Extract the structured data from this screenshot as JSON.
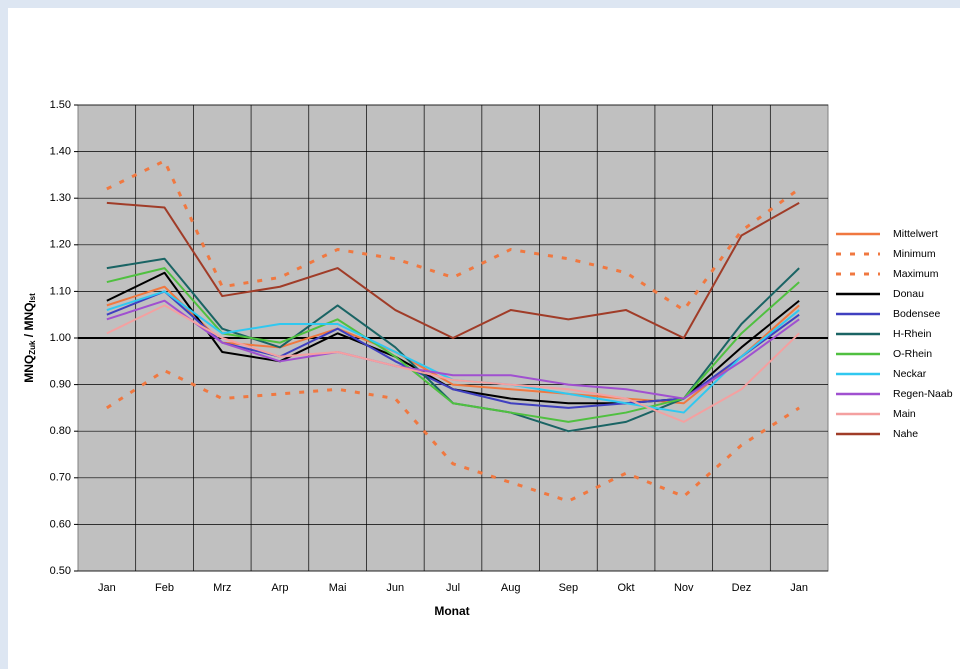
{
  "chart_data": {
    "type": "line",
    "xlabel": "Monat",
    "ylabel_parts": [
      "MNQ",
      "Zuk",
      " / MNQ",
      "Ist"
    ],
    "categories": [
      "Jan",
      "Feb",
      "Mrz",
      "Arp",
      "Mai",
      "Jun",
      "Jul",
      "Aug",
      "Sep",
      "Okt",
      "Nov",
      "Dez",
      "Jan"
    ],
    "ylim": [
      0.5,
      1.5
    ],
    "yticks": [
      {
        "value": 0.5,
        "label": "0.50"
      },
      {
        "value": 0.6,
        "label": "0.60"
      },
      {
        "value": 0.7,
        "label": "0.70"
      },
      {
        "value": 0.8,
        "label": "0.80"
      },
      {
        "value": 0.9,
        "label": "0.90"
      },
      {
        "value": 1.0,
        "label": "1.00"
      },
      {
        "value": 1.1,
        "label": "1.10"
      },
      {
        "value": 1.2,
        "label": "1.20"
      },
      {
        "value": 1.3,
        "label": "1.30"
      },
      {
        "value": 1.4,
        "label": "1.40"
      },
      {
        "value": 1.5,
        "label": "1.50"
      }
    ],
    "grid": true,
    "reference_line": 1.0,
    "legend": "right",
    "series": [
      {
        "name": "Mittelwert",
        "color": "#f07840",
        "values": [
          1.07,
          1.11,
          0.99,
          0.98,
          1.02,
          0.97,
          0.9,
          0.89,
          0.88,
          0.87,
          0.86,
          0.96,
          1.07
        ]
      },
      {
        "name": "Minimum",
        "color": "#f07840",
        "dash": true,
        "values": [
          0.85,
          0.93,
          0.87,
          0.88,
          0.89,
          0.87,
          0.73,
          0.69,
          0.65,
          0.71,
          0.66,
          0.77,
          0.85
        ]
      },
      {
        "name": "Maximum",
        "color": "#f07840",
        "dash": true,
        "values": [
          1.32,
          1.38,
          1.11,
          1.13,
          1.19,
          1.17,
          1.13,
          1.19,
          1.17,
          1.14,
          1.06,
          1.23,
          1.32
        ]
      },
      {
        "name": "Donau",
        "color": "#000000",
        "values": [
          1.08,
          1.14,
          0.97,
          0.95,
          1.01,
          0.96,
          0.89,
          0.87,
          0.86,
          0.86,
          0.87,
          0.98,
          1.08
        ]
      },
      {
        "name": "Bodensee",
        "color": "#4040c0",
        "values": [
          1.05,
          1.1,
          0.99,
          0.96,
          1.02,
          0.95,
          0.89,
          0.86,
          0.85,
          0.86,
          0.87,
          0.96,
          1.05
        ]
      },
      {
        "name": "H-Rhein",
        "color": "#1a6464",
        "values": [
          1.15,
          1.17,
          1.02,
          0.98,
          1.07,
          0.98,
          0.86,
          0.84,
          0.8,
          0.82,
          0.87,
          1.03,
          1.15
        ]
      },
      {
        "name": "O-Rhein",
        "color": "#50c040",
        "values": [
          1.12,
          1.15,
          1.01,
          0.99,
          1.04,
          0.96,
          0.86,
          0.84,
          0.82,
          0.84,
          0.87,
          1.01,
          1.12
        ]
      },
      {
        "name": "Neckar",
        "color": "#30c8f0",
        "values": [
          1.06,
          1.1,
          1.01,
          1.03,
          1.03,
          0.97,
          0.91,
          0.9,
          0.88,
          0.86,
          0.84,
          0.96,
          1.06
        ]
      },
      {
        "name": "Regen-Naab",
        "color": "#a050d0",
        "values": [
          1.04,
          1.08,
          0.99,
          0.95,
          0.97,
          0.94,
          0.92,
          0.92,
          0.9,
          0.89,
          0.87,
          0.95,
          1.04
        ]
      },
      {
        "name": "Main",
        "color": "#f4a0a0",
        "values": [
          1.01,
          1.07,
          1.0,
          0.96,
          0.97,
          0.94,
          0.91,
          0.9,
          0.89,
          0.87,
          0.82,
          0.89,
          1.01
        ]
      },
      {
        "name": "Nahe",
        "color": "#a03c28",
        "values": [
          1.29,
          1.28,
          1.09,
          1.11,
          1.15,
          1.06,
          1.0,
          1.06,
          1.04,
          1.06,
          1.0,
          1.22,
          1.29
        ]
      }
    ]
  }
}
